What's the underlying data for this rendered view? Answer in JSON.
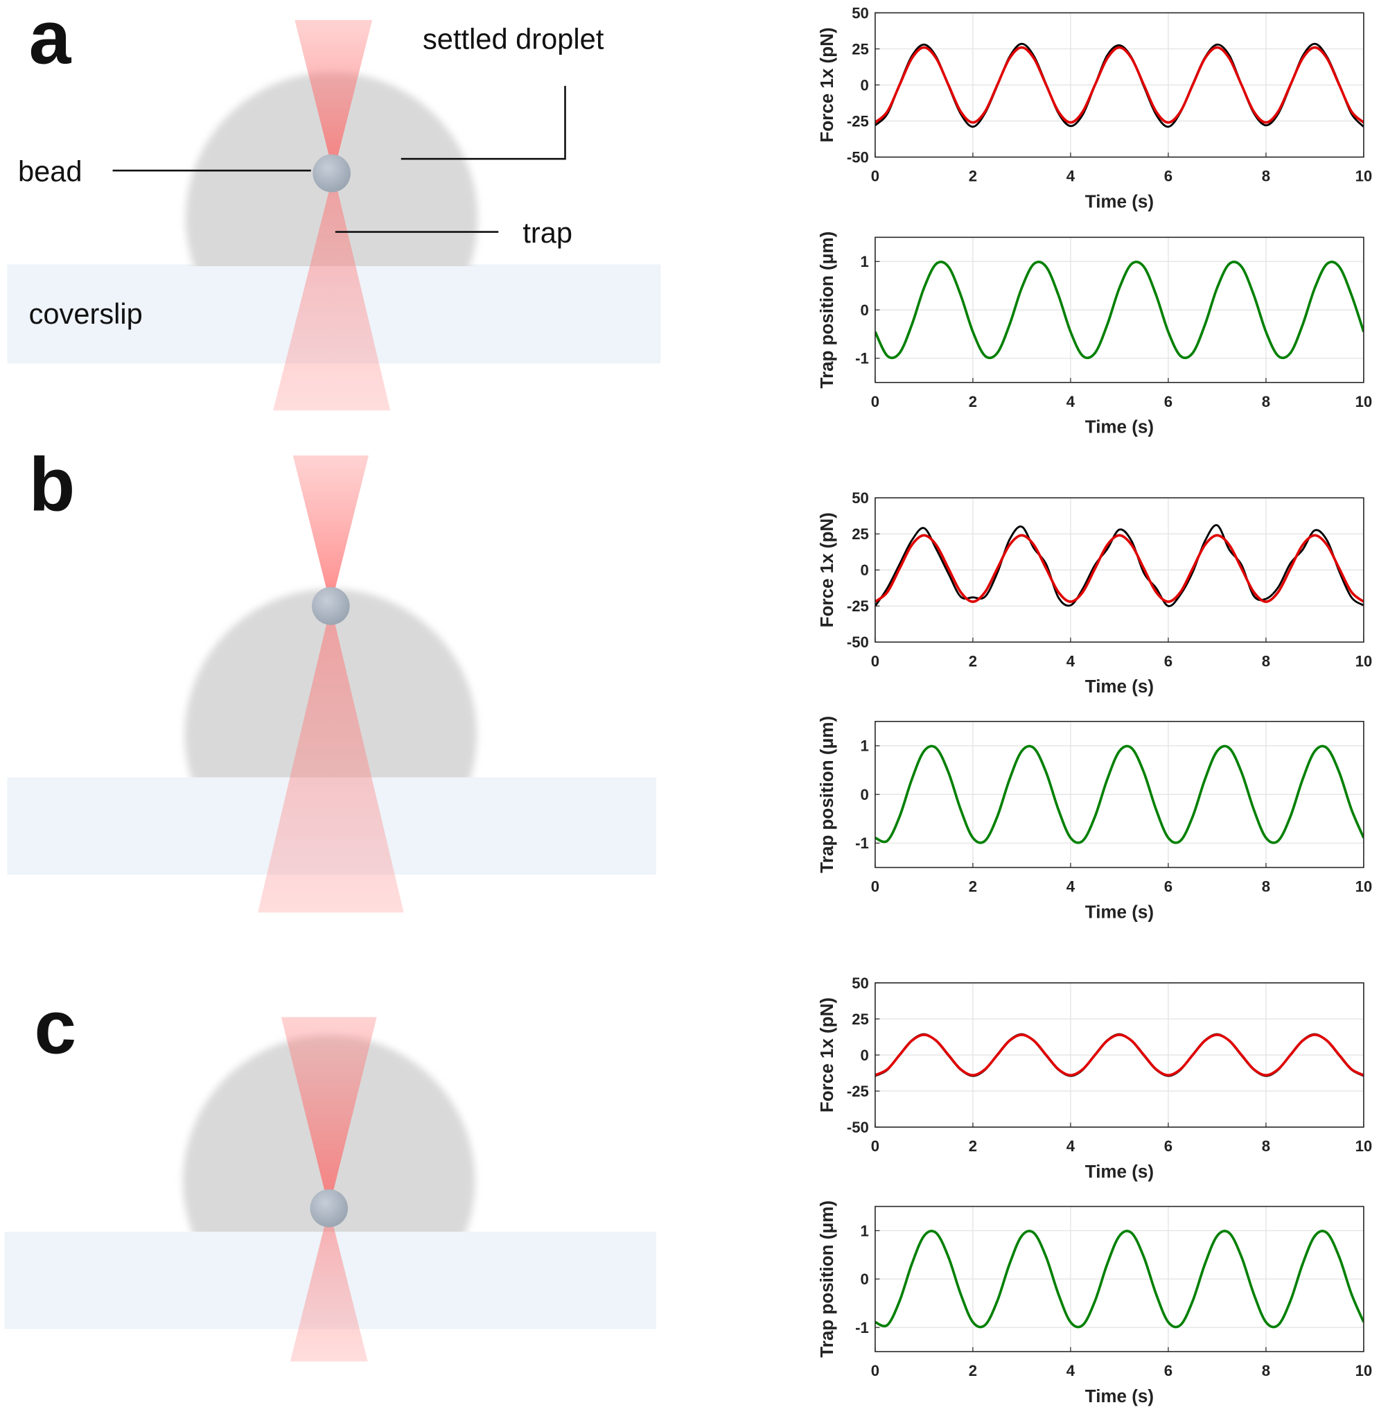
{
  "diagram": {
    "panels": [
      "a",
      "b",
      "c"
    ],
    "labels": {
      "droplet": "settled droplet",
      "bead": "bead",
      "trap": "trap",
      "coverslip": "coverslip"
    }
  },
  "chart_data": [
    {
      "type": "line",
      "xlabel": "Time (s)",
      "ylabel": "Force 1x (pN)",
      "xlim": [
        0,
        10
      ],
      "xticks": [
        0,
        2,
        4,
        6,
        8,
        10
      ],
      "ylim": [
        -50,
        50
      ],
      "yticks": [
        -50,
        -25,
        0,
        25,
        50
      ],
      "grid": true,
      "x": [
        0,
        0.25,
        0.5,
        0.75,
        1,
        1.25,
        1.5,
        1.75,
        2,
        2.25,
        2.5,
        2.75,
        3,
        3.25,
        3.5,
        3.75,
        4,
        4.25,
        4.5,
        4.75,
        5,
        5.25,
        5.5,
        5.75,
        6,
        6.25,
        6.5,
        6.75,
        7,
        7.25,
        7.5,
        7.75,
        8,
        8.25,
        8.5,
        8.75,
        9,
        9.25,
        9.5,
        9.75,
        10
      ],
      "series": [
        {
          "color": "#000000",
          "values": [
            -28,
            -20,
            0.5,
            20,
            28,
            19.5,
            -0.5,
            -20,
            -29,
            -19.5,
            -0.5,
            19.5,
            28.5,
            20,
            0.5,
            -19.5,
            -28.5,
            -20.5,
            0,
            20.5,
            27.5,
            19,
            -1,
            -20.5,
            -29,
            -19,
            0.5,
            19,
            28,
            20.5,
            0,
            -19.5,
            -28,
            -20,
            -0.5,
            20,
            28.5,
            19.5,
            0.5,
            -20,
            -29
          ]
        },
        {
          "color": "#e00000",
          "values": [
            -26,
            -18.4,
            0,
            18.4,
            26,
            18.4,
            0,
            -18.4,
            -26,
            -18.4,
            0,
            18.4,
            26,
            18.4,
            0,
            -18.4,
            -26,
            -18.4,
            0,
            18.4,
            26,
            18.4,
            0,
            -18.4,
            -26,
            -18.4,
            0,
            18.4,
            26,
            18.4,
            0,
            -18.4,
            -26,
            -18.4,
            0,
            18.4,
            26,
            18.4,
            0,
            -18.4,
            -26
          ]
        }
      ]
    },
    {
      "type": "line",
      "xlabel": "Time (s)",
      "ylabel": "Trap position (μm)",
      "xlim": [
        0,
        10
      ],
      "xticks": [
        0,
        2,
        4,
        6,
        8,
        10
      ],
      "ylim": [
        -1.5,
        1.5
      ],
      "yticks": [
        -1,
        0,
        1
      ],
      "grid": true,
      "x": [
        0,
        0.25,
        0.5,
        0.75,
        1,
        1.25,
        1.5,
        1.75,
        2,
        2.25,
        2.5,
        2.75,
        3,
        3.25,
        3.5,
        3.75,
        4,
        4.25,
        4.5,
        4.75,
        5,
        5.25,
        5.5,
        5.75,
        6,
        6.25,
        6.5,
        6.75,
        7,
        7.25,
        7.5,
        7.75,
        8,
        8.25,
        8.5,
        8.75,
        9,
        9.25,
        9.5,
        9.75,
        10
      ],
      "series": [
        {
          "color": "#008000",
          "values": [
            -0.454,
            -0.951,
            -0.891,
            -0.309,
            0.454,
            0.951,
            0.891,
            0.309,
            -0.454,
            -0.951,
            -0.891,
            -0.309,
            0.454,
            0.951,
            0.891,
            0.309,
            -0.454,
            -0.951,
            -0.891,
            -0.309,
            0.454,
            0.951,
            0.891,
            0.309,
            -0.454,
            -0.951,
            -0.891,
            -0.309,
            0.454,
            0.951,
            0.891,
            0.309,
            -0.454,
            -0.951,
            -0.891,
            -0.309,
            0.454,
            0.951,
            0.891,
            0.309,
            -0.454
          ]
        }
      ]
    },
    {
      "type": "line",
      "xlabel": "Time (s)",
      "ylabel": "Force 1x (pN)",
      "xlim": [
        0,
        10
      ],
      "xticks": [
        0,
        2,
        4,
        6,
        8,
        10
      ],
      "ylim": [
        -50,
        50
      ],
      "yticks": [
        -50,
        -25,
        0,
        25,
        50
      ],
      "grid": true,
      "x": [
        0,
        0.25,
        0.5,
        0.75,
        1,
        1.25,
        1.5,
        1.75,
        2,
        2.25,
        2.5,
        2.75,
        3,
        3.25,
        3.5,
        3.75,
        4,
        4.25,
        4.5,
        4.75,
        5,
        5.25,
        5.5,
        5.75,
        6,
        6.25,
        6.5,
        6.75,
        7,
        7.25,
        7.5,
        7.75,
        8,
        8.25,
        8.5,
        8.75,
        9,
        9.25,
        9.5,
        9.75,
        10
      ],
      "series": [
        {
          "color": "#000000",
          "values": [
            -25,
            -12.5,
            4,
            20.5,
            29,
            14.5,
            -2.5,
            -18.5,
            -19,
            -18.5,
            -2,
            21,
            30,
            15,
            4,
            -19,
            -24.5,
            -13,
            3.5,
            14.5,
            28,
            20,
            -2,
            -12.5,
            -25,
            -17,
            -1.5,
            20,
            31,
            14,
            3.5,
            -18,
            -20,
            -12,
            4.5,
            14,
            27.5,
            20.5,
            -1,
            -19,
            -24.5
          ]
        },
        {
          "color": "#e00000",
          "values": [
            -22,
            -15.3,
            1,
            17.3,
            24,
            17.3,
            1,
            -15.3,
            -22,
            -15.3,
            1,
            17.3,
            24,
            17.3,
            1,
            -15.3,
            -22,
            -15.3,
            1,
            17.3,
            24,
            17.3,
            1,
            -15.3,
            -22,
            -15.3,
            1,
            17.3,
            24,
            17.3,
            1,
            -15.3,
            -22,
            -15.3,
            1,
            17.3,
            24,
            17.3,
            1,
            -15.3,
            -22
          ]
        }
      ]
    },
    {
      "type": "line",
      "xlabel": "Time (s)",
      "ylabel": "Trap position (μm)",
      "xlim": [
        0,
        10
      ],
      "xticks": [
        0,
        2,
        4,
        6,
        8,
        10
      ],
      "ylim": [
        -1.5,
        1.5
      ],
      "yticks": [
        -1,
        0,
        1
      ],
      "grid": true,
      "x": [
        0,
        0.25,
        0.5,
        0.75,
        1,
        1.25,
        1.5,
        1.75,
        2,
        2.25,
        2.5,
        2.75,
        3,
        3.25,
        3.5,
        3.75,
        4,
        4.25,
        4.5,
        4.75,
        5,
        5.25,
        5.5,
        5.75,
        6,
        6.25,
        6.5,
        6.75,
        7,
        7.25,
        7.5,
        7.75,
        8,
        8.25,
        8.5,
        8.75,
        9,
        9.25,
        9.5,
        9.75,
        10
      ],
      "series": [
        {
          "color": "#008000",
          "values": [
            -0.891,
            -0.951,
            -0.454,
            0.309,
            0.891,
            0.951,
            0.454,
            -0.309,
            -0.891,
            -0.951,
            -0.454,
            0.309,
            0.891,
            0.951,
            0.454,
            -0.309,
            -0.891,
            -0.951,
            -0.454,
            0.309,
            0.891,
            0.951,
            0.454,
            -0.309,
            -0.891,
            -0.951,
            -0.454,
            0.309,
            0.891,
            0.951,
            0.454,
            -0.309,
            -0.891,
            -0.951,
            -0.454,
            0.309,
            0.891,
            0.951,
            0.454,
            -0.309,
            -0.891
          ]
        }
      ]
    },
    {
      "type": "line",
      "xlabel": "Time (s)",
      "ylabel": "Force 1x (pN)",
      "xlim": [
        0,
        10
      ],
      "xticks": [
        0,
        2,
        4,
        6,
        8,
        10
      ],
      "ylim": [
        -50,
        50
      ],
      "yticks": [
        -50,
        -25,
        0,
        25,
        50
      ],
      "grid": true,
      "x": [
        0,
        0.25,
        0.5,
        0.75,
        1,
        1.25,
        1.5,
        1.75,
        2,
        2.25,
        2.5,
        2.75,
        3,
        3.25,
        3.5,
        3.75,
        4,
        4.25,
        4.5,
        4.75,
        5,
        5.25,
        5.5,
        5.75,
        6,
        6.25,
        6.5,
        6.75,
        7,
        7.25,
        7.5,
        7.75,
        8,
        8.25,
        8.5,
        8.75,
        9,
        9.25,
        9.5,
        9.75,
        10
      ],
      "series": [
        {
          "color": "#000000",
          "values": [
            -14.5,
            -10.3,
            0.3,
            10.2,
            14.4,
            9.7,
            -0.4,
            -10.2,
            -14.5,
            -10.3,
            0.3,
            10.2,
            14.4,
            9.7,
            -0.4,
            -10.2,
            -14.5,
            -10.3,
            0.3,
            10.2,
            14.4,
            9.7,
            -0.4,
            -10.2,
            -14.5,
            -10.3,
            0.3,
            10.2,
            14.4,
            9.7,
            -0.4,
            -10.2,
            -14.5,
            -10.3,
            0.3,
            10.2,
            14.4,
            9.7,
            -0.4,
            -10.2,
            -14.5
          ]
        },
        {
          "color": "#e00000",
          "values": [
            -14,
            -9.9,
            0,
            9.9,
            14,
            9.9,
            0,
            -9.9,
            -14,
            -9.9,
            0,
            9.9,
            14,
            9.9,
            0,
            -9.9,
            -14,
            -9.9,
            0,
            9.9,
            14,
            9.9,
            0,
            -9.9,
            -14,
            -9.9,
            0,
            9.9,
            14,
            9.9,
            0,
            -9.9,
            -14,
            -9.9,
            0,
            9.9,
            14,
            9.9,
            0,
            -9.9,
            -14
          ]
        }
      ]
    },
    {
      "type": "line",
      "xlabel": "Time (s)",
      "ylabel": "Trap position (μm)",
      "xlim": [
        0,
        10
      ],
      "xticks": [
        0,
        2,
        4,
        6,
        8,
        10
      ],
      "ylim": [
        -1.5,
        1.5
      ],
      "yticks": [
        -1,
        0,
        1
      ],
      "grid": true,
      "x": [
        0,
        0.25,
        0.5,
        0.75,
        1,
        1.25,
        1.5,
        1.75,
        2,
        2.25,
        2.5,
        2.75,
        3,
        3.25,
        3.5,
        3.75,
        4,
        4.25,
        4.5,
        4.75,
        5,
        5.25,
        5.5,
        5.75,
        6,
        6.25,
        6.5,
        6.75,
        7,
        7.25,
        7.5,
        7.75,
        8,
        8.25,
        8.5,
        8.75,
        9,
        9.25,
        9.5,
        9.75,
        10
      ],
      "series": [
        {
          "color": "#008000",
          "values": [
            -0.891,
            -0.951,
            -0.454,
            0.309,
            0.891,
            0.951,
            0.454,
            -0.309,
            -0.891,
            -0.951,
            -0.454,
            0.309,
            0.891,
            0.951,
            0.454,
            -0.309,
            -0.891,
            -0.951,
            -0.454,
            0.309,
            0.891,
            0.951,
            0.454,
            -0.309,
            -0.891,
            -0.951,
            -0.454,
            0.309,
            0.891,
            0.951,
            0.454,
            -0.309,
            -0.891,
            -0.951,
            -0.454,
            0.309,
            0.891,
            0.951,
            0.454,
            -0.309,
            -0.891
          ]
        }
      ]
    }
  ]
}
